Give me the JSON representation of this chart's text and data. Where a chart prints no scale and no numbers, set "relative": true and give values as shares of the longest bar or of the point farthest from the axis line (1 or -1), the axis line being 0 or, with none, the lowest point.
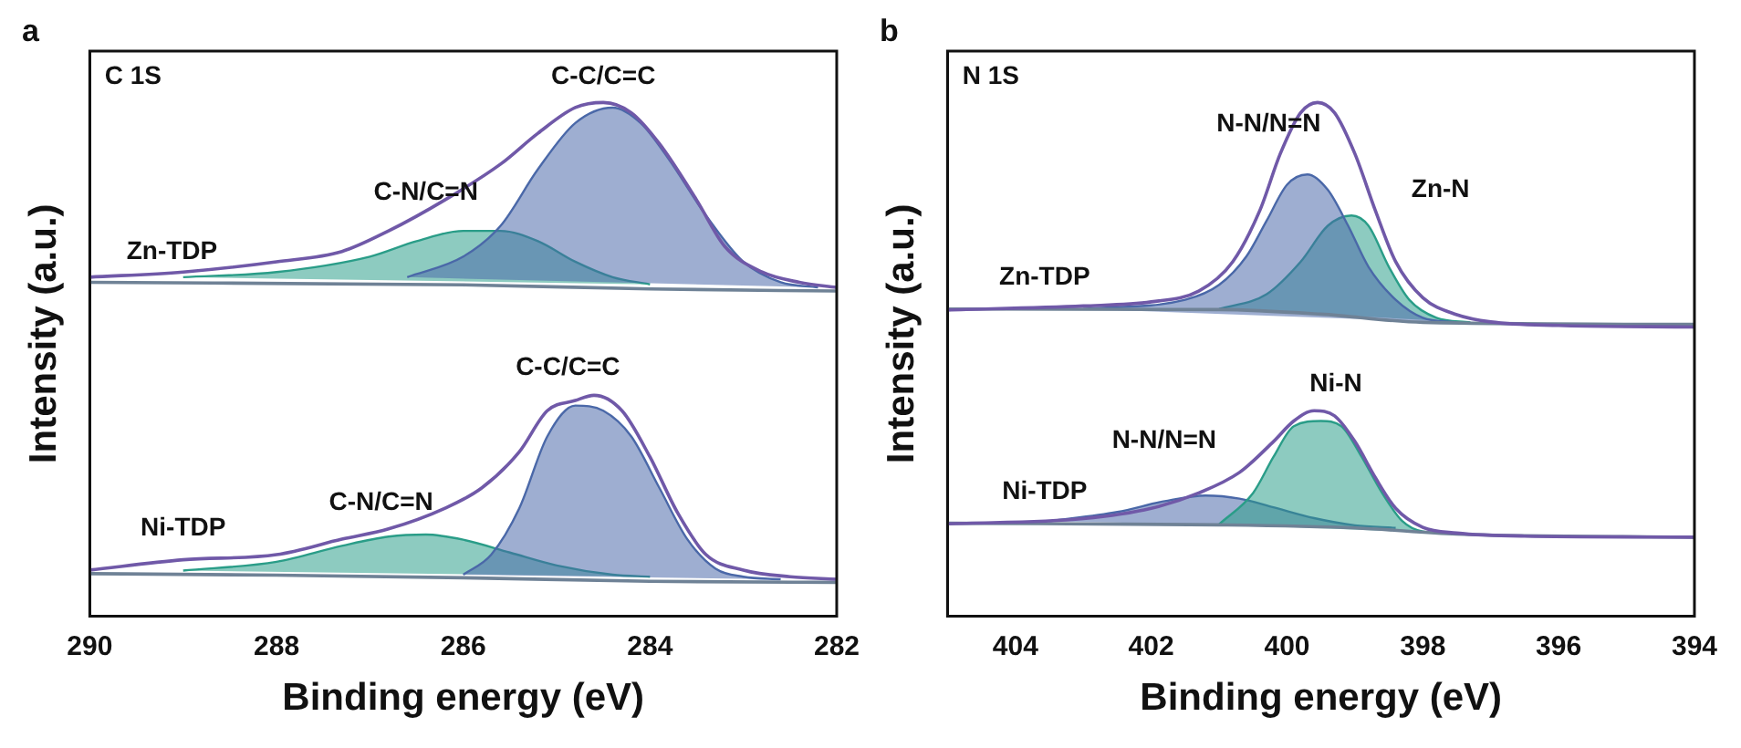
{
  "chart_data": [
    {
      "type": "line",
      "title": "a",
      "xlabel": "Binding energy (eV)",
      "ylabel": "Intensity (a.u.)",
      "relative": true,
      "tick_labels": "x",
      "marker": "none",
      "line_style": "solid",
      "xlim": [
        290,
        282
      ],
      "xticks": [
        290,
        288,
        286,
        284,
        282
      ],
      "annotations": [
        "C 1S",
        "C-C/C=C",
        "C-N/C=N",
        "Zn-TDP",
        "C-C/C=C",
        "C-N/C=N",
        "Ni-TDP"
      ],
      "series": [
        {
          "type": "line",
          "color": "#7059a8",
          "x": [
            290,
            289,
            288,
            287.3,
            286.8,
            286.2,
            285.6,
            285.2,
            284.8,
            284.5,
            284.2,
            283.9,
            283.5,
            283.2,
            282.8,
            282.4,
            282
          ],
          "values": [
            0.66,
            0.67,
            0.69,
            0.71,
            0.75,
            0.81,
            0.88,
            0.94,
            0.99,
            1.0,
            0.98,
            0.92,
            0.81,
            0.72,
            0.67,
            0.65,
            0.64
          ]
        },
        {
          "type": "line",
          "color": "#6f8296",
          "x": [
            290,
            286,
            284,
            282
          ],
          "values": [
            0.65,
            0.645,
            0.637,
            0.633
          ]
        },
        {
          "type": "area",
          "color": "#4a68a8",
          "x": [
            286.6,
            286,
            285.6,
            285.2,
            284.8,
            284.4,
            284.1,
            283.8,
            283.4,
            283,
            282.6,
            282.2
          ],
          "values": [
            0.66,
            0.7,
            0.76,
            0.87,
            0.96,
            0.99,
            0.96,
            0.89,
            0.78,
            0.69,
            0.65,
            0.64
          ]
        },
        {
          "type": "area",
          "color": "#2a9d88",
          "x": [
            289,
            288,
            287,
            286.5,
            286,
            285.6,
            285.2,
            284.8,
            284.4,
            284
          ],
          "values": [
            0.66,
            0.67,
            0.7,
            0.73,
            0.75,
            0.75,
            0.73,
            0.69,
            0.66,
            0.646
          ]
        },
        {
          "type": "line",
          "color": "#7059a8",
          "x": [
            290,
            289,
            288,
            287.3,
            286.8,
            286.2,
            285.8,
            285.4,
            285.1,
            284.8,
            284.6,
            284.3,
            284,
            283.7,
            283.4,
            283,
            282.5,
            282
          ],
          "values": [
            0.09,
            0.11,
            0.12,
            0.15,
            0.17,
            0.21,
            0.25,
            0.32,
            0.4,
            0.42,
            0.43,
            0.4,
            0.31,
            0.2,
            0.12,
            0.09,
            0.077,
            0.072
          ]
        },
        {
          "type": "line",
          "color": "#6f8296",
          "x": [
            290,
            288,
            286,
            284,
            282
          ],
          "values": [
            0.083,
            0.08,
            0.075,
            0.068,
            0.066
          ]
        },
        {
          "type": "area",
          "color": "#4a68a8",
          "x": [
            286,
            285.7,
            285.4,
            285.1,
            284.8,
            284.5,
            284.2,
            283.9,
            283.6,
            283.3,
            283,
            282.6
          ],
          "values": [
            0.081,
            0.12,
            0.21,
            0.35,
            0.41,
            0.4,
            0.35,
            0.25,
            0.15,
            0.093,
            0.077,
            0.072
          ]
        },
        {
          "type": "area",
          "color": "#2a9d88",
          "x": [
            289,
            288,
            287.3,
            286.8,
            286.4,
            286,
            285.5,
            285,
            284.4,
            284
          ],
          "values": [
            0.089,
            0.106,
            0.137,
            0.155,
            0.159,
            0.149,
            0.124,
            0.099,
            0.081,
            0.077
          ]
        }
      ]
    },
    {
      "type": "line",
      "title": "b",
      "xlabel": "Binding energy (eV)",
      "ylabel": "Intensity (a.u.)",
      "relative": true,
      "tick_labels": "x",
      "marker": "none",
      "line_style": "solid",
      "xlim": [
        405,
        394
      ],
      "xticks": [
        404,
        402,
        400,
        398,
        396,
        394
      ],
      "annotations": [
        "N 1S",
        "N-N/N=N",
        "Zn-N",
        "Zn-TDP",
        "Ni-N",
        "N-N/N=N",
        "Ni-TDP"
      ],
      "series": [
        {
          "type": "line",
          "color": "#7059a8",
          "x": [
            405,
            403,
            402,
            401.3,
            400.8,
            400.4,
            400.1,
            399.8,
            399.55,
            399.3,
            399,
            398.7,
            398.4,
            398,
            397.5,
            397,
            396,
            394
          ],
          "values": [
            0.596,
            0.604,
            0.612,
            0.633,
            0.69,
            0.79,
            0.9,
            0.98,
            1.0,
            0.98,
            0.9,
            0.79,
            0.69,
            0.62,
            0.587,
            0.573,
            0.566,
            0.563
          ]
        },
        {
          "type": "line",
          "color": "#6f8296",
          "x": [
            405,
            401,
            399.5,
            398,
            394
          ],
          "values": [
            0.598,
            0.597,
            0.588,
            0.572,
            0.568
          ]
        },
        {
          "type": "area",
          "color": "#4a68a8",
          "x": [
            403,
            401.5,
            401,
            400.6,
            400.3,
            400,
            399.7,
            399.4,
            399.1,
            398.8,
            398.4,
            398,
            397.5
          ],
          "values": [
            0.598,
            0.616,
            0.645,
            0.7,
            0.77,
            0.84,
            0.86,
            0.83,
            0.76,
            0.68,
            0.616,
            0.581,
            0.572
          ]
        },
        {
          "type": "area",
          "color": "#2a9d88",
          "x": [
            401,
            400.3,
            399.8,
            399.4,
            399.05,
            398.8,
            398.5,
            398.2,
            397.8,
            397.3
          ],
          "values": [
            0.598,
            0.627,
            0.69,
            0.76,
            0.78,
            0.76,
            0.68,
            0.616,
            0.581,
            0.572
          ]
        },
        {
          "type": "line",
          "color": "#7059a8",
          "x": [
            405,
            403,
            402,
            401.3,
            400.7,
            400.2,
            399.9,
            399.6,
            399.3,
            399,
            398.7,
            398.4,
            398,
            397.5,
            396.5,
            394
          ],
          "values": [
            0.18,
            0.19,
            0.21,
            0.24,
            0.28,
            0.34,
            0.38,
            0.4,
            0.39,
            0.34,
            0.27,
            0.21,
            0.173,
            0.162,
            0.156,
            0.154
          ]
        },
        {
          "type": "line",
          "color": "#6f8296",
          "x": [
            405,
            401,
            399,
            397.5,
            394
          ],
          "values": [
            0.181,
            0.178,
            0.172,
            0.16,
            0.154
          ]
        },
        {
          "type": "area",
          "color": "#2a9d88",
          "x": [
            401,
            400.5,
            400.2,
            399.9,
            399.5,
            399.2,
            398.9,
            398.6,
            398.3,
            398,
            397.5
          ],
          "values": [
            0.179,
            0.24,
            0.31,
            0.37,
            0.38,
            0.37,
            0.31,
            0.24,
            0.185,
            0.165,
            0.161
          ]
        },
        {
          "type": "area",
          "color": "#4a68a8",
          "x": [
            403.5,
            402.5,
            401.8,
            401.2,
            400.7,
            400.2,
            399.6,
            399,
            398.4
          ],
          "values": [
            0.185,
            0.203,
            0.224,
            0.235,
            0.229,
            0.212,
            0.191,
            0.177,
            0.172
          ]
        }
      ]
    }
  ]
}
